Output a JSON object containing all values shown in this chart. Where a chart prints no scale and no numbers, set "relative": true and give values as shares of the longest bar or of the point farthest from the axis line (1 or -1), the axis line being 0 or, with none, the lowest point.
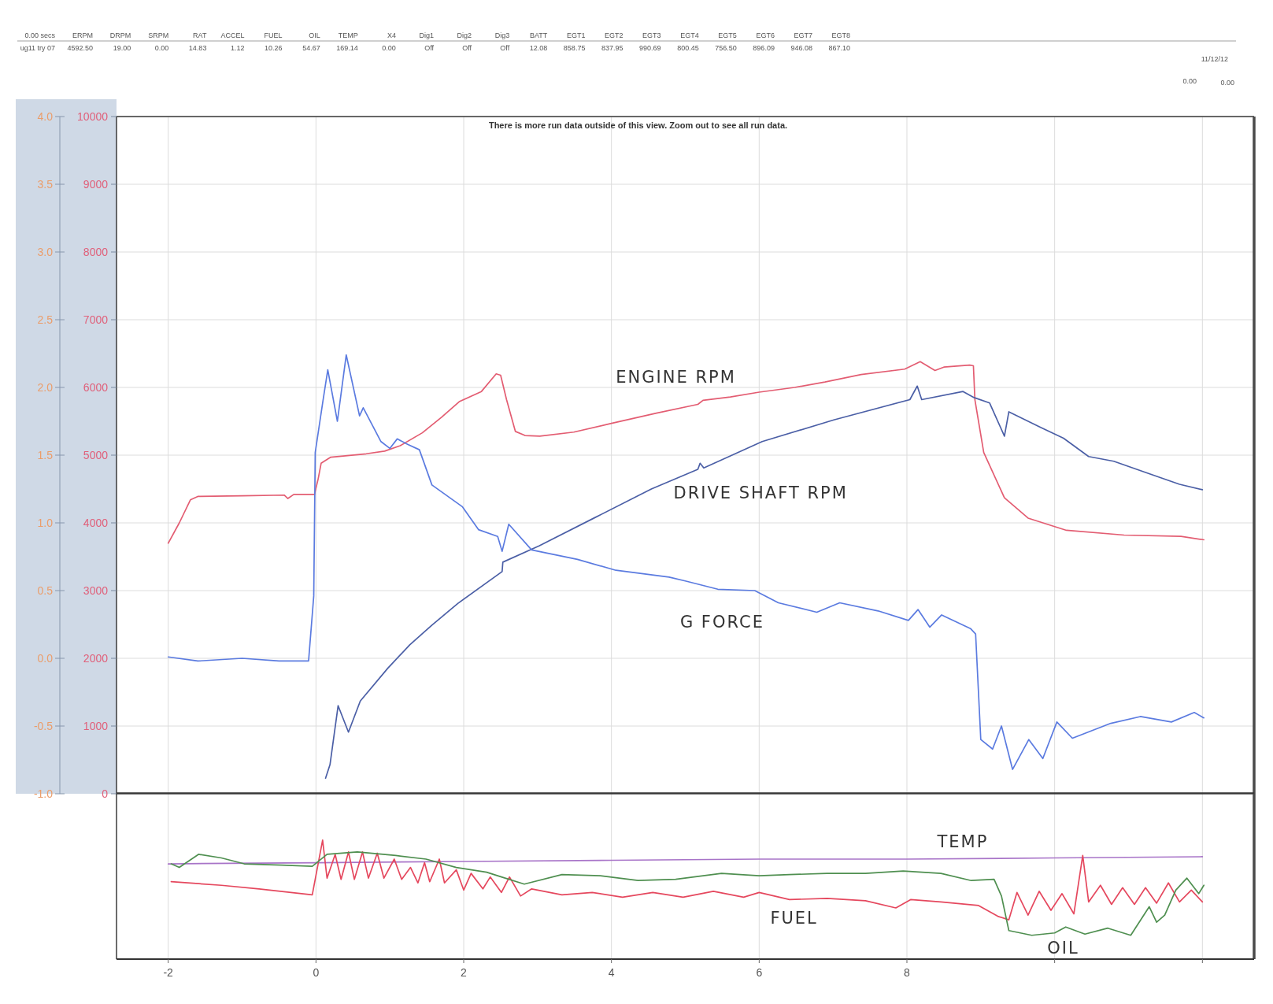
{
  "chart_data": [
    {
      "type": "other",
      "categories": [
        "0.00 secs",
        "ERPM",
        "DRPM",
        "SRPM",
        "RAT",
        "ACCEL",
        "FUEL",
        "OIL",
        "TEMP",
        "X4",
        "Dig1",
        "Dig2",
        "Dig3",
        "BATT",
        "EGT1",
        "EGT2",
        "EGT3",
        "EGT4",
        "EGT5",
        "EGT6",
        "EGT7",
        "EGT8"
      ],
      "value_labels": [
        "ug11 try 07",
        "4592.50",
        "19.00",
        "0.00",
        "14.83",
        "1.12",
        "10.26",
        "54.67",
        "169.14",
        "0.00",
        "Off",
        "Off",
        "Off",
        "12.08",
        "858.75",
        "837.95",
        "990.69",
        "800.45",
        "756.50",
        "896.09",
        "946.08",
        "867.10"
      ],
      "annotations": [
        "11/12/12",
        "0.00",
        "0.00"
      ]
    },
    {
      "type": "line",
      "annotations": [
        "There is more run data outside of this view. Zoom out to see all run data."
      ],
      "xlim": [
        -2.7,
        12.7
      ],
      "xticks": [
        -2,
        0,
        2,
        4,
        6,
        8,
        10,
        12
      ],
      "ylim": [
        0,
        10000
      ],
      "yticks": [
        0,
        1000,
        2000,
        3000,
        4000,
        5000,
        6000,
        7000,
        8000,
        9000,
        10000
      ],
      "y2lim": [
        -1,
        4
      ],
      "y2ticks": [
        {
          "value": -1,
          "label": "-1.0"
        },
        -0.5,
        {
          "value": 0,
          "label": "0.0"
        },
        0.5,
        {
          "value": 1,
          "label": "1.0"
        },
        1.5,
        {
          "value": 2,
          "label": "2.0"
        },
        2.5,
        {
          "value": 3,
          "label": "3.0"
        },
        3.5,
        {
          "value": 4,
          "label": "4.0"
        }
      ],
      "grid": true,
      "tick_labels": "y",
      "series": [
        {
          "name": "ENGINE RPM",
          "color": "#e35d72",
          "x": [
            -2.0,
            -1.85,
            -1.7,
            -1.6,
            -1.0,
            -0.43,
            -0.38,
            -0.3,
            -0.02,
            0.03,
            0.07,
            0.2,
            0.68,
            0.93,
            1.14,
            1.44,
            1.7,
            1.94,
            2.24,
            2.44,
            2.5,
            2.58,
            2.7,
            2.83,
            3.03,
            3.49,
            4.0,
            4.61,
            5.17,
            5.24,
            5.61,
            6.0,
            6.48,
            6.89,
            7.38,
            7.97,
            8.18,
            8.38,
            8.5,
            8.85,
            8.9,
            8.92,
            9.04,
            9.32,
            9.64,
            10.16,
            10.94,
            11.71,
            12.02
          ],
          "values": [
            3700,
            4000,
            4340,
            4390,
            4400,
            4410,
            4360,
            4420,
            4420,
            4650,
            4880,
            4970,
            5020,
            5060,
            5140,
            5330,
            5560,
            5790,
            5940,
            6200,
            6180,
            5820,
            5350,
            5290,
            5280,
            5340,
            5470,
            5620,
            5750,
            5810,
            5860,
            5930,
            6000,
            6080,
            6190,
            6270,
            6380,
            6250,
            6300,
            6330,
            6320,
            5820,
            5040,
            4370,
            4070,
            3890,
            3820,
            3800,
            3750
          ]
        },
        {
          "name": "DRIVE SHAFT RPM",
          "color": "#4b5fa6",
          "x": [
            0.13,
            0.19,
            0.3,
            0.44,
            0.6,
            0.97,
            1.27,
            1.57,
            1.92,
            2.52,
            2.53,
            3.02,
            3.78,
            4.54,
            5.17,
            5.2,
            5.25,
            6.04,
            7.01,
            8.04,
            8.14,
            8.2,
            8.76,
            8.91,
            9.12,
            9.32,
            9.38,
            9.81,
            10.12,
            10.46,
            10.8,
            11.27,
            11.69,
            12.0
          ],
          "values": [
            230,
            430,
            1300,
            910,
            1370,
            1850,
            2200,
            2490,
            2810,
            3280,
            3420,
            3660,
            4080,
            4500,
            4790,
            4880,
            4810,
            5200,
            5520,
            5820,
            6020,
            5820,
            5940,
            5850,
            5770,
            5280,
            5640,
            5410,
            5250,
            4980,
            4910,
            4730,
            4570,
            4490
          ]
        },
        {
          "name": "G FORCE",
          "color": "#5b7be0",
          "axis": "y2",
          "x": [
            -2.0,
            -1.6,
            -1.0,
            -0.5,
            -0.1,
            -0.03,
            -0.01,
            0.1,
            0.16,
            0.29,
            0.41,
            0.59,
            0.64,
            0.88,
            1.0,
            1.1,
            1.24,
            1.4,
            1.57,
            1.98,
            2.2,
            2.46,
            2.52,
            2.61,
            2.92,
            3.54,
            4.06,
            4.78,
            5.01,
            5.44,
            5.94,
            6.26,
            6.78,
            7.09,
            7.61,
            8.02,
            8.15,
            8.31,
            8.47,
            8.86,
            8.93,
            9.0,
            9.16,
            9.28,
            9.43,
            9.65,
            9.84,
            10.03,
            10.24,
            10.76,
            11.16,
            11.58,
            11.89,
            12.02
          ],
          "values": [
            0.01,
            -0.02,
            0.0,
            -0.02,
            -0.02,
            0.46,
            1.52,
            1.92,
            2.13,
            1.75,
            2.24,
            1.79,
            1.85,
            1.6,
            1.55,
            1.62,
            1.58,
            1.54,
            1.28,
            1.12,
            0.95,
            0.9,
            0.79,
            0.99,
            0.8,
            0.73,
            0.65,
            0.6,
            0.57,
            0.51,
            0.5,
            0.41,
            0.34,
            0.41,
            0.35,
            0.28,
            0.36,
            0.23,
            0.32,
            0.22,
            0.18,
            -0.6,
            -0.67,
            -0.5,
            -0.82,
            -0.6,
            -0.74,
            -0.47,
            -0.59,
            -0.48,
            -0.43,
            -0.47,
            -0.4,
            -0.44
          ]
        }
      ]
    },
    {
      "type": "line",
      "relative": true,
      "xlim": [
        -2.7,
        12.7
      ],
      "xticks": [
        -2,
        0,
        2,
        4,
        6,
        8,
        {
          "value": 10,
          "label": null
        },
        {
          "value": 12,
          "label": null
        }
      ],
      "grid": "x",
      "tick_labels": "x",
      "series": [
        {
          "name": "TEMP",
          "color": "#a874c8",
          "x": [
            -2.0,
            0,
            2,
            4,
            6,
            8,
            10,
            12.0
          ],
          "values": [
            0.8,
            0.81,
            0.82,
            0.83,
            0.84,
            0.84,
            0.85,
            0.86
          ]
        },
        {
          "name": "FUEL",
          "color": "#e5485e",
          "x": [
            -1.96,
            -1.28,
            -0.77,
            -0.05,
            0.09,
            0.15,
            0.26,
            0.34,
            0.44,
            0.52,
            0.63,
            0.71,
            0.83,
            0.92,
            1.06,
            1.16,
            1.28,
            1.38,
            1.47,
            1.54,
            1.67,
            1.74,
            1.9,
            2.0,
            2.1,
            2.26,
            2.36,
            2.51,
            2.62,
            2.77,
            2.92,
            3.33,
            3.74,
            4.15,
            4.56,
            4.97,
            5.38,
            5.79,
            6.0,
            6.41,
            6.92,
            7.44,
            7.85,
            8.05,
            8.46,
            8.97,
            9.23,
            9.38,
            9.49,
            9.64,
            9.79,
            9.95,
            10.1,
            10.26,
            10.38,
            10.46,
            10.62,
            10.77,
            10.92,
            11.08,
            11.23,
            11.38,
            11.54,
            11.69,
            11.85,
            12.0
          ],
          "values": [
            0.65,
            0.62,
            0.59,
            0.54,
            1.0,
            0.68,
            0.88,
            0.67,
            0.9,
            0.67,
            0.9,
            0.68,
            0.89,
            0.68,
            0.84,
            0.67,
            0.77,
            0.64,
            0.81,
            0.65,
            0.84,
            0.64,
            0.75,
            0.58,
            0.72,
            0.59,
            0.69,
            0.56,
            0.69,
            0.53,
            0.59,
            0.54,
            0.56,
            0.52,
            0.56,
            0.52,
            0.57,
            0.52,
            0.56,
            0.5,
            0.51,
            0.49,
            0.43,
            0.5,
            0.48,
            0.45,
            0.36,
            0.33,
            0.56,
            0.37,
            0.57,
            0.41,
            0.55,
            0.38,
            0.87,
            0.48,
            0.62,
            0.46,
            0.6,
            0.46,
            0.6,
            0.47,
            0.64,
            0.48,
            0.58,
            0.48
          ]
        },
        {
          "name": "OIL",
          "color": "#4f8f50",
          "x": [
            -1.96,
            -1.85,
            -1.59,
            -1.28,
            -0.97,
            -0.46,
            -0.05,
            0.15,
            0.56,
            1.08,
            1.49,
            1.9,
            2.31,
            2.51,
            2.82,
            3.33,
            3.85,
            4.36,
            4.87,
            5.49,
            6.0,
            6.41,
            6.92,
            7.44,
            7.95,
            8.46,
            8.87,
            9.18,
            9.28,
            9.38,
            9.69,
            10.0,
            10.15,
            10.41,
            10.72,
            11.03,
            11.28,
            11.38,
            11.49,
            11.64,
            11.79,
            11.95,
            12.02
          ],
          "values": [
            0.8,
            0.77,
            0.88,
            0.85,
            0.8,
            0.79,
            0.78,
            0.88,
            0.9,
            0.87,
            0.84,
            0.77,
            0.73,
            0.69,
            0.63,
            0.71,
            0.7,
            0.66,
            0.67,
            0.72,
            0.7,
            0.71,
            0.72,
            0.72,
            0.74,
            0.72,
            0.66,
            0.67,
            0.53,
            0.24,
            0.2,
            0.22,
            0.27,
            0.21,
            0.26,
            0.2,
            0.44,
            0.31,
            0.37,
            0.58,
            0.68,
            0.55,
            0.62
          ]
        }
      ]
    }
  ]
}
